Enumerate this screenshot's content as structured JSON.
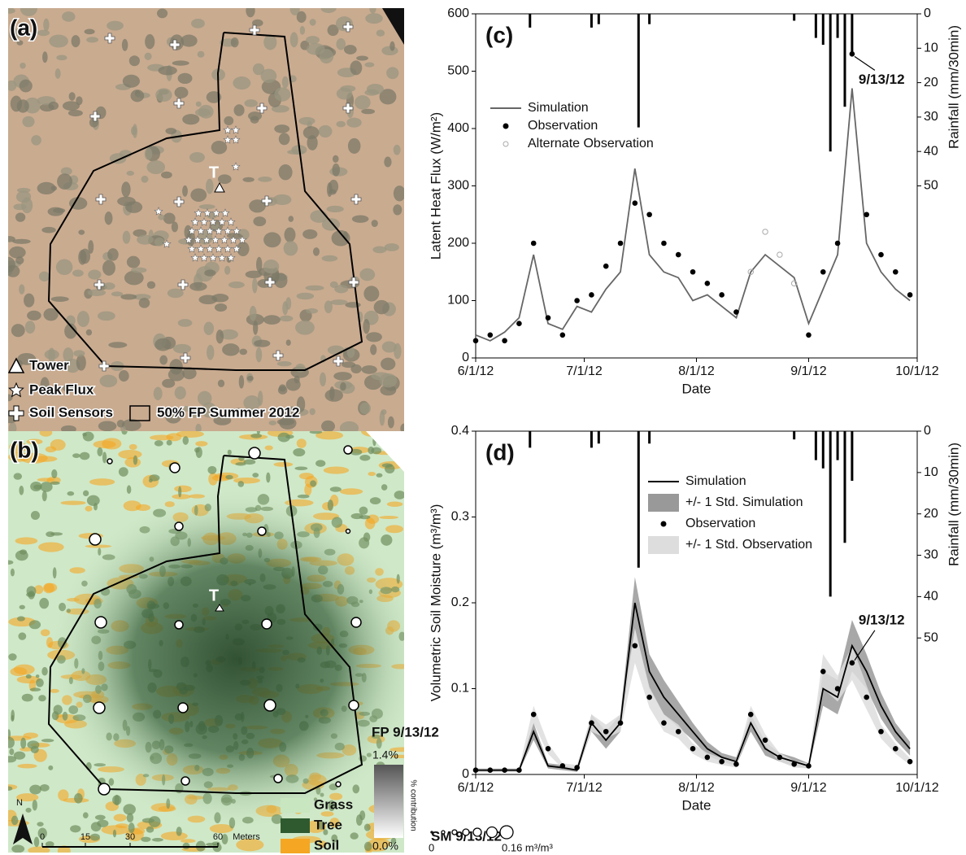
{
  "chart_data": [
    {
      "type": "line",
      "panel": "(c)",
      "xlabel": "Date",
      "ylabel": "Latent Heat Flux (W/m²)",
      "y2label": "Rainfall (mm/30min)",
      "x": [
        "6/1/12",
        "6/5/12",
        "6/9/12",
        "6/13/12",
        "6/17/12",
        "6/21/12",
        "6/25/12",
        "6/29/12",
        "7/3/12",
        "7/7/12",
        "7/11/12",
        "7/15/12",
        "7/19/12",
        "7/23/12",
        "7/27/12",
        "7/31/12",
        "8/4/12",
        "8/8/12",
        "8/12/12",
        "8/16/12",
        "8/20/12",
        "8/24/12",
        "8/28/12",
        "9/1/12",
        "9/5/12",
        "9/9/12",
        "9/13/12",
        "9/17/12",
        "9/21/12",
        "9/25/12",
        "9/29/12"
      ],
      "xlim": [
        "6/1/12",
        "10/1/12"
      ],
      "xticks": [
        "6/1/12",
        "7/1/12",
        "8/1/12",
        "9/1/12",
        "10/1/12"
      ],
      "ylim": [
        0,
        600
      ],
      "yticks": [
        0,
        100,
        200,
        300,
        400,
        500,
        600
      ],
      "y2lim": [
        100,
        0
      ],
      "y2ticks": [
        0,
        10,
        20,
        30,
        40,
        50
      ],
      "series": [
        {
          "name": "Simulation",
          "type": "line",
          "color": "#666666",
          "values": [
            40,
            30,
            45,
            70,
            180,
            60,
            50,
            90,
            80,
            120,
            150,
            330,
            180,
            150,
            140,
            100,
            110,
            90,
            70,
            150,
            180,
            160,
            140,
            60,
            120,
            180,
            470,
            200,
            150,
            120,
            100
          ]
        },
        {
          "name": "Observation",
          "type": "scatter",
          "color": "#000000",
          "values": [
            30,
            40,
            30,
            60,
            200,
            70,
            40,
            100,
            110,
            160,
            200,
            270,
            250,
            200,
            180,
            150,
            130,
            110,
            80,
            null,
            null,
            null,
            null,
            40,
            150,
            200,
            530,
            250,
            180,
            150,
            110
          ]
        },
        {
          "name": "Alternate Observation",
          "type": "scatter",
          "marker": "open",
          "color": "#aaaaaa",
          "values": [
            null,
            null,
            null,
            null,
            null,
            null,
            null,
            null,
            null,
            null,
            null,
            null,
            null,
            null,
            null,
            null,
            null,
            null,
            null,
            150,
            220,
            180,
            130,
            null,
            null,
            null,
            null,
            null,
            null,
            null,
            null
          ]
        },
        {
          "type": "bar",
          "axis": "y2",
          "color": "#000000",
          "x": [
            "6/16/12",
            "7/3/12",
            "7/5/12",
            "7/16/12",
            "7/19/12",
            "8/28/12",
            "9/3/12",
            "9/5/12",
            "9/7/12",
            "9/9/12",
            "9/11/12",
            "9/13/12"
          ],
          "values": [
            4,
            4,
            3,
            33,
            3,
            2,
            7,
            9,
            40,
            7,
            27,
            12
          ]
        }
      ],
      "annotations": [
        {
          "text": "9/13/12",
          "x": "9/13/12",
          "y": 530
        }
      ],
      "legend": "upper left"
    },
    {
      "type": "line",
      "panel": "(d)",
      "xlabel": "Date",
      "ylabel": "Volumetric Soil Moisture (m³/m³)",
      "y2label": "Rainfall (mm/30min)",
      "x": [
        "6/1/12",
        "6/5/12",
        "6/9/12",
        "6/13/12",
        "6/17/12",
        "6/21/12",
        "6/25/12",
        "6/29/12",
        "7/3/12",
        "7/7/12",
        "7/11/12",
        "7/15/12",
        "7/19/12",
        "7/23/12",
        "7/27/12",
        "7/31/12",
        "8/4/12",
        "8/8/12",
        "8/12/12",
        "8/16/12",
        "8/20/12",
        "8/24/12",
        "8/28/12",
        "9/1/12",
        "9/5/12",
        "9/9/12",
        "9/13/12",
        "9/17/12",
        "9/21/12",
        "9/25/12",
        "9/29/12"
      ],
      "xlim": [
        "6/1/12",
        "10/1/12"
      ],
      "xticks": [
        "6/1/12",
        "7/1/12",
        "8/1/12",
        "9/1/12",
        "10/1/12"
      ],
      "ylim": [
        0,
        0.4
      ],
      "yticks": [
        0,
        0.1,
        0.2,
        0.3,
        0.4
      ],
      "y2lim": [
        83,
        0
      ],
      "y2ticks": [
        0,
        10,
        20,
        30,
        40,
        50
      ],
      "series": [
        {
          "name": "Simulation",
          "type": "line",
          "color": "#000000",
          "values": [
            0.005,
            0.005,
            0.005,
            0.005,
            0.05,
            0.01,
            0.008,
            0.005,
            0.06,
            0.04,
            0.06,
            0.2,
            0.12,
            0.09,
            0.07,
            0.05,
            0.03,
            0.02,
            0.015,
            0.06,
            0.03,
            0.02,
            0.015,
            0.01,
            0.1,
            0.09,
            0.15,
            0.12,
            0.08,
            0.05,
            0.03
          ]
        },
        {
          "name": "+/- 1 Std. Simulation",
          "type": "band",
          "color": "#999999",
          "low": [
            0.003,
            0.003,
            0.003,
            0.003,
            0.04,
            0.007,
            0.005,
            0.003,
            0.05,
            0.03,
            0.05,
            0.17,
            0.1,
            0.07,
            0.055,
            0.04,
            0.022,
            0.015,
            0.01,
            0.05,
            0.022,
            0.015,
            0.01,
            0.007,
            0.08,
            0.07,
            0.12,
            0.1,
            0.065,
            0.04,
            0.022
          ],
          "high": [
            0.007,
            0.007,
            0.007,
            0.007,
            0.06,
            0.013,
            0.011,
            0.007,
            0.07,
            0.05,
            0.07,
            0.23,
            0.14,
            0.11,
            0.085,
            0.06,
            0.038,
            0.025,
            0.02,
            0.07,
            0.038,
            0.025,
            0.02,
            0.013,
            0.12,
            0.11,
            0.18,
            0.14,
            0.095,
            0.06,
            0.038
          ]
        },
        {
          "name": "Observation",
          "type": "scatter",
          "color": "#000000",
          "values": [
            0.005,
            0.005,
            0.005,
            0.005,
            0.07,
            0.03,
            0.01,
            0.008,
            0.06,
            0.05,
            0.06,
            0.15,
            0.09,
            0.06,
            0.05,
            0.03,
            0.02,
            0.015,
            0.012,
            0.07,
            0.04,
            0.02,
            0.012,
            0.01,
            0.12,
            0.1,
            0.13,
            0.09,
            0.05,
            0.03,
            0.015
          ]
        },
        {
          "name": "+/- 1 Std. Observation",
          "type": "band",
          "color": "#dddddd",
          "low": [
            0.003,
            0.003,
            0.003,
            0.003,
            0.06,
            0.024,
            0.007,
            0.005,
            0.05,
            0.042,
            0.05,
            0.13,
            0.078,
            0.05,
            0.042,
            0.024,
            0.015,
            0.011,
            0.008,
            0.06,
            0.033,
            0.015,
            0.008,
            0.007,
            0.1,
            0.085,
            0.11,
            0.076,
            0.042,
            0.024,
            0.011
          ],
          "high": [
            0.007,
            0.007,
            0.007,
            0.007,
            0.08,
            0.036,
            0.013,
            0.011,
            0.07,
            0.058,
            0.07,
            0.17,
            0.102,
            0.07,
            0.058,
            0.036,
            0.025,
            0.019,
            0.016,
            0.08,
            0.047,
            0.025,
            0.016,
            0.013,
            0.14,
            0.115,
            0.15,
            0.104,
            0.058,
            0.036,
            0.019
          ]
        },
        {
          "type": "bar",
          "axis": "y2",
          "color": "#000000",
          "x": [
            "6/16/12",
            "7/3/12",
            "7/5/12",
            "7/16/12",
            "7/19/12",
            "8/28/12",
            "9/3/12",
            "9/5/12",
            "9/7/12",
            "9/9/12",
            "9/11/12",
            "9/13/12"
          ],
          "values": [
            4,
            4,
            3,
            33,
            3,
            2,
            7,
            9,
            40,
            7,
            27,
            12
          ]
        }
      ],
      "annotations": [
        {
          "text": "9/13/12",
          "x": "9/13/12",
          "y": 0.13
        }
      ],
      "legend": "upper right"
    }
  ],
  "map_a": {
    "label": "(a)",
    "tower_mark": "T",
    "legend": [
      "Tower",
      "Peak Flux",
      "Soil Sensors",
      "50% FP Summer 2012"
    ]
  },
  "map_b": {
    "label": "(b)",
    "tower_mark": "T",
    "fp_title": "FP 9/13/12",
    "fp_max": "1.4%",
    "fp_min": "0.0%",
    "fp_unit": "% contribution",
    "classes": [
      "Grass",
      "Tree",
      "Soil"
    ],
    "class_colors": [
      "#c8e6c0",
      "#2f5a30",
      "#f5a623"
    ],
    "sm_title": "SM 9/13/12",
    "sm_min": "0",
    "sm_max": "0.16 m³/m³",
    "north": "N",
    "scale": [
      "0",
      "15",
      "30",
      "60",
      "Meters"
    ]
  }
}
